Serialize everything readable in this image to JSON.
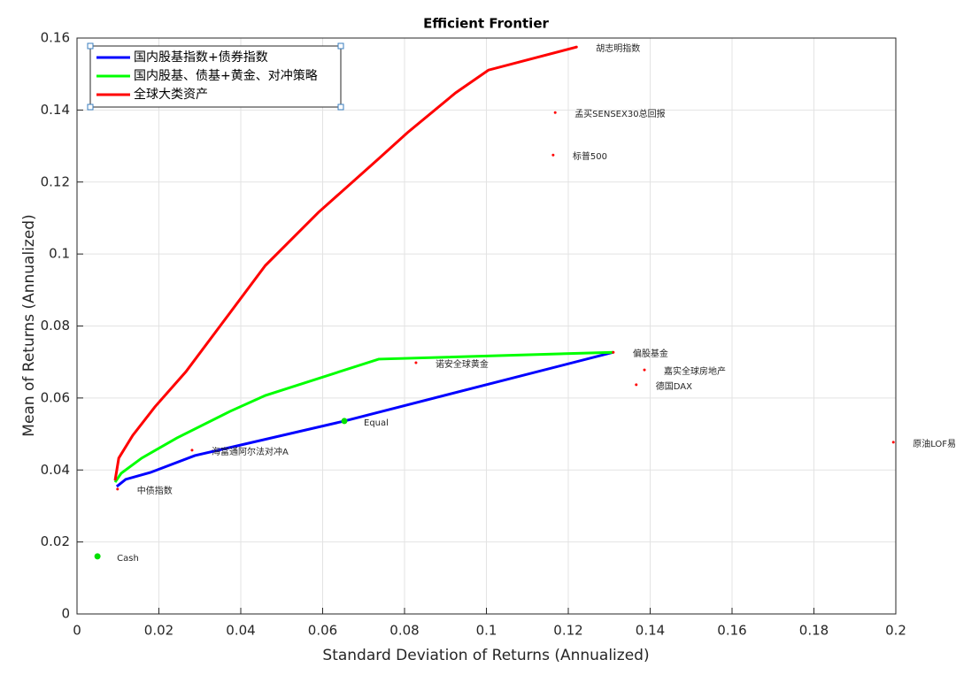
{
  "chart_data": {
    "type": "line",
    "title": "Efficient Frontier",
    "x_label": "Standard Deviation of Returns (Annualized)",
    "y_label": "Mean of Returns (Annualized)",
    "xlim": [
      0,
      0.2
    ],
    "ylim": [
      0,
      0.16
    ],
    "xticks": [
      0,
      0.02,
      0.04,
      0.06,
      0.08,
      0.1,
      0.12,
      0.14,
      0.16,
      0.18,
      0.2
    ],
    "yticks": [
      0,
      0.02,
      0.04,
      0.06,
      0.08,
      0.1,
      0.12,
      0.14,
      0.16
    ],
    "grid": true,
    "legend": "upper left",
    "series": [
      {
        "name": "国内股基指数+债券指数",
        "color": "#0000ff",
        "x": [
          0.0097,
          0.0119,
          0.0179,
          0.0288,
          0.0653,
          0.131
        ],
        "values": [
          0.0354,
          0.0374,
          0.0393,
          0.044,
          0.0536,
          0.0727
        ]
      },
      {
        "name": "国内股基、债基+黄金、对冲策略",
        "color": "#00ff00",
        "x": [
          0.0093,
          0.0108,
          0.0158,
          0.0244,
          0.0374,
          0.046,
          0.0737,
          0.131
        ],
        "values": [
          0.0366,
          0.0391,
          0.0433,
          0.0489,
          0.0563,
          0.0607,
          0.0708,
          0.0727
        ]
      },
      {
        "name": "全球大类资产",
        "color": "#ff0000",
        "x": [
          0.0093,
          0.0102,
          0.0136,
          0.019,
          0.0266,
          0.046,
          0.059,
          0.0735,
          0.0807,
          0.0925,
          0.1005,
          0.122
        ],
        "values": [
          0.0371,
          0.0433,
          0.0496,
          0.0575,
          0.0673,
          0.0968,
          0.1116,
          0.1263,
          0.1337,
          0.1448,
          0.1511,
          0.1575
        ]
      }
    ],
    "assets_color": "#ff0000",
    "assets": [
      {
        "label": "胡志明指数",
        "x": 0.122,
        "y": 0.1575
      },
      {
        "label": "孟买SENSEX30总回报",
        "x": 0.1168,
        "y": 0.1393
      },
      {
        "label": "标普500",
        "x": 0.1163,
        "y": 0.1275
      },
      {
        "label": "偏股基金",
        "x": 0.131,
        "y": 0.0727
      },
      {
        "label": "嘉实全球房地产",
        "x": 0.1386,
        "y": 0.0678
      },
      {
        "label": "德国DAX",
        "x": 0.1366,
        "y": 0.0637
      },
      {
        "label": "诺安全球黄金",
        "x": 0.0828,
        "y": 0.0698
      },
      {
        "label": "海富通阿尔法对冲A",
        "x": 0.0281,
        "y": 0.0455
      },
      {
        "label": "中债指数",
        "x": 0.0099,
        "y": 0.0347
      },
      {
        "label": "原油LOF易方达",
        "x": 0.1994,
        "y": 0.0477
      }
    ],
    "portfolios_color": "#00e000",
    "portfolios": [
      {
        "label": "Cash",
        "x": 0.005,
        "y": 0.016
      },
      {
        "label": "Equal",
        "x": 0.0653,
        "y": 0.0536
      }
    ]
  }
}
